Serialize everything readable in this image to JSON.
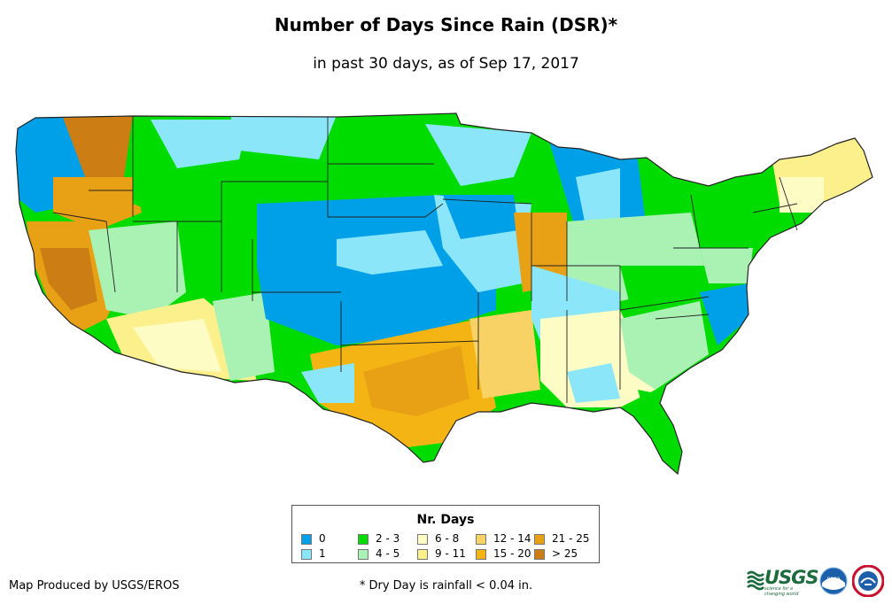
{
  "title": "Number of Days Since Rain (DSR)*",
  "subtitle": "in past 30 days, as of Sep 17, 2017",
  "legend": {
    "title": "Nr. Days",
    "items": [
      {
        "label": "0",
        "color": "#00a0e8"
      },
      {
        "label": "1",
        "color": "#8ce6fa"
      },
      {
        "label": "2 - 3",
        "color": "#00dc00"
      },
      {
        "label": "4 - 5",
        "color": "#aaf2b4"
      },
      {
        "label": "6 - 8",
        "color": "#fcfcc4"
      },
      {
        "label": "9 - 11",
        "color": "#fcf08c"
      },
      {
        "label": "12 - 14",
        "color": "#f8d264"
      },
      {
        "label": "15 - 20",
        "color": "#f4b414"
      },
      {
        "label": "21 - 25",
        "color": "#e8a014"
      },
      {
        "label": "> 25",
        "color": "#cc7e14"
      }
    ]
  },
  "footer": {
    "credit": "Map Produced by USGS/EROS",
    "footnote": "* Dry Day is rainfall < 0.04 in."
  },
  "logos": {
    "usgs": "USGS",
    "usgs_tagline": "science for a changing world",
    "noaa": "noaa"
  }
}
